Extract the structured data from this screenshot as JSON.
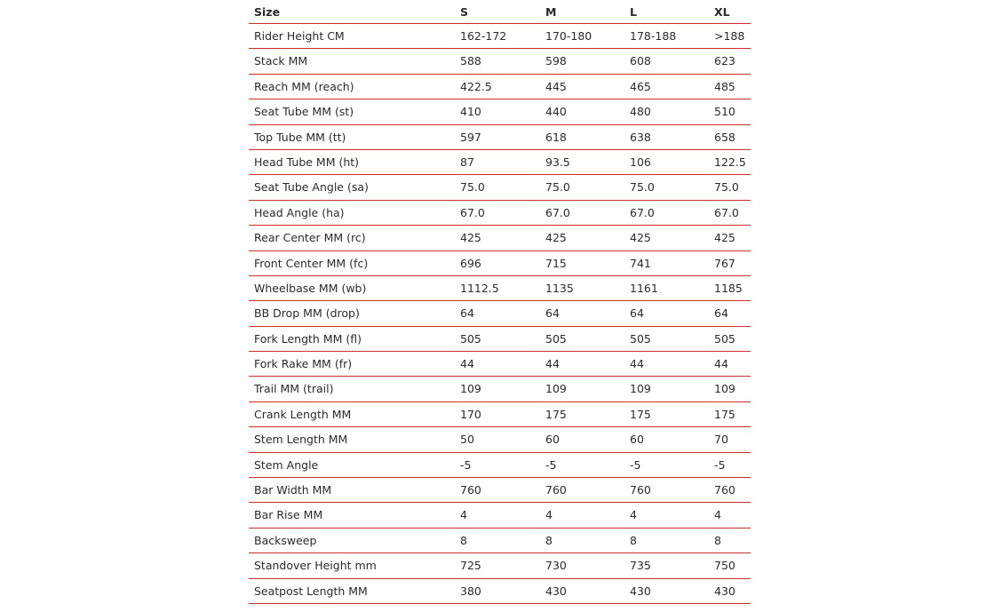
{
  "table": {
    "header": [
      "Size",
      "S",
      "M",
      "L",
      "XL"
    ],
    "rows": [
      [
        "Rider Height CM",
        "162-172",
        "170-180",
        "178-188",
        ">188"
      ],
      [
        "Stack MM",
        "588",
        "598",
        "608",
        "623"
      ],
      [
        "Reach MM (reach)",
        "422.5",
        "445",
        "465",
        "485"
      ],
      [
        "Seat Tube MM (st)",
        "410",
        "440",
        "480",
        "510"
      ],
      [
        "Top Tube MM (tt)",
        "597",
        "618",
        "638",
        "658"
      ],
      [
        "Head Tube MM (ht)",
        "87",
        "93.5",
        "106",
        "122.5"
      ],
      [
        "Seat Tube Angle (sa)",
        "75.0",
        "75.0",
        "75.0",
        "75.0"
      ],
      [
        "Head Angle (ha)",
        "67.0",
        "67.0",
        "67.0",
        "67.0"
      ],
      [
        "Rear Center MM (rc)",
        "425",
        "425",
        "425",
        "425"
      ],
      [
        "Front Center MM (fc)",
        "696",
        "715",
        "741",
        "767"
      ],
      [
        "Wheelbase MM (wb)",
        "1112.5",
        "1135",
        "1161",
        "1185"
      ],
      [
        "BB Drop MM (drop)",
        "64",
        "64",
        "64",
        "64"
      ],
      [
        "Fork Length MM (fl)",
        "505",
        "505",
        "505",
        "505"
      ],
      [
        "Fork Rake MM (fr)",
        "44",
        "44",
        "44",
        "44"
      ],
      [
        "Trail MM (trail)",
        "109",
        "109",
        "109",
        "109"
      ],
      [
        "Crank Length MM",
        "170",
        "175",
        "175",
        "175"
      ],
      [
        "Stem Length MM",
        "50",
        "60",
        "60",
        "70"
      ],
      [
        "Stem Angle",
        "-5",
        "-5",
        "-5",
        "-5"
      ],
      [
        "Bar Width MM",
        "760",
        "760",
        "760",
        "760"
      ],
      [
        "Bar Rise MM",
        "4",
        "4",
        "4",
        "4"
      ],
      [
        "Backsweep",
        "8",
        "8",
        "8",
        "8"
      ],
      [
        "Standover Height mm",
        "725",
        "730",
        "735",
        "750"
      ],
      [
        "Seatpost Length MM",
        "380",
        "430",
        "430",
        "430"
      ]
    ]
  }
}
